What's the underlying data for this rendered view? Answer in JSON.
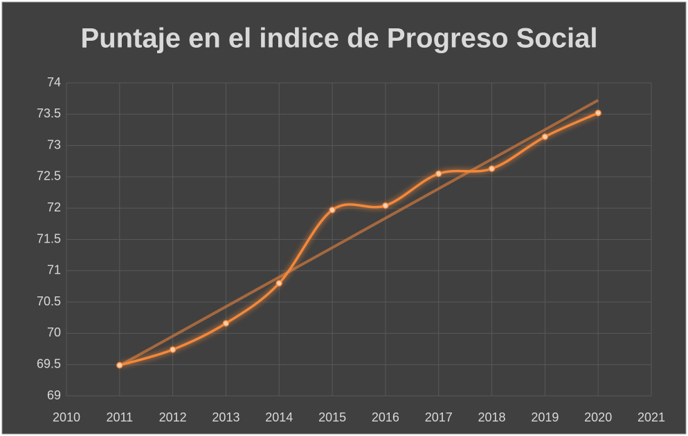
{
  "chart_data": {
    "type": "line",
    "title": "Puntaje en el indice de Progreso Social",
    "x": [
      2011,
      2012,
      2013,
      2014,
      2015,
      2016,
      2017,
      2018,
      2019,
      2020
    ],
    "values": [
      69.49,
      69.74,
      70.16,
      70.8,
      71.97,
      72.04,
      72.55,
      72.63,
      73.14,
      73.52
    ],
    "color": "#f4883a",
    "trendline_color": "#b8703e",
    "smooth": true,
    "markers": true,
    "trendline": true,
    "grid": true,
    "xlim": [
      2010,
      2021
    ],
    "xticks": [
      2010,
      2011,
      2012,
      2013,
      2014,
      2015,
      2016,
      2017,
      2018,
      2019,
      2020,
      2021
    ],
    "ylim": [
      69,
      74
    ],
    "yticks": [
      69,
      69.5,
      70,
      70.5,
      71,
      71.5,
      72,
      72.5,
      73,
      73.5,
      74
    ]
  }
}
